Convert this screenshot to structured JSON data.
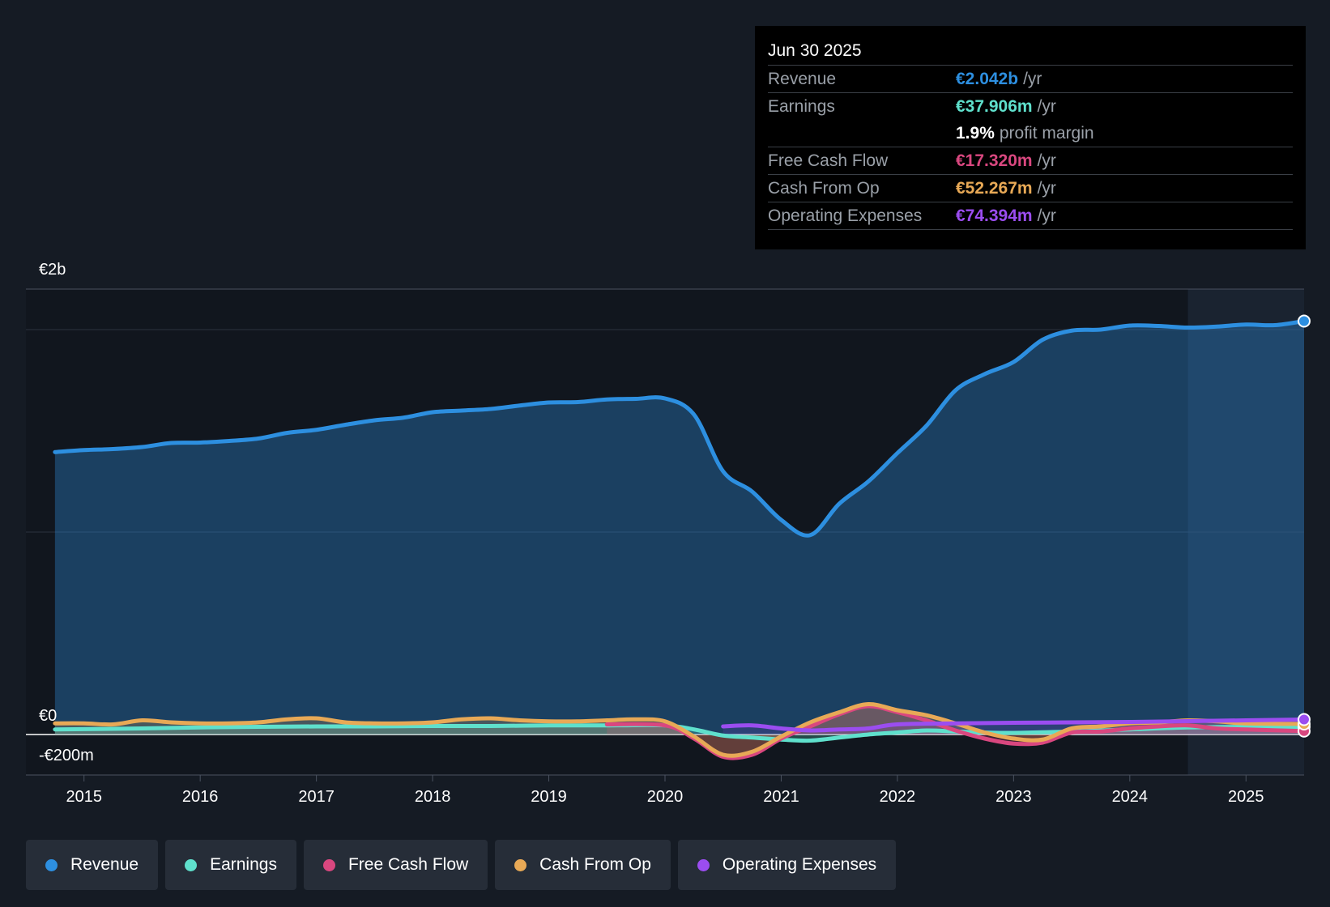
{
  "tooltip": {
    "date": "Jun 30 2025",
    "rows": [
      {
        "label": "Revenue",
        "value": "€2.042b",
        "unit": "/yr",
        "color": "#2d8fe0"
      },
      {
        "label": "Earnings",
        "value": "€37.906m",
        "unit": "/yr",
        "color": "#5fe0cc"
      },
      {
        "label": "Free Cash Flow",
        "value": "€17.320m",
        "unit": "/yr",
        "color": "#d9477f"
      },
      {
        "label": "Cash From Op",
        "value": "€52.267m",
        "unit": "/yr",
        "color": "#e8a956"
      },
      {
        "label": "Operating Expenses",
        "value": "€74.394m",
        "unit": "/yr",
        "color": "#9b4df0"
      }
    ],
    "profit_margin": {
      "value": "1.9%",
      "label": "profit margin"
    }
  },
  "legend": [
    {
      "label": "Revenue",
      "color": "#2d8fe0"
    },
    {
      "label": "Earnings",
      "color": "#5fe0cc"
    },
    {
      "label": "Free Cash Flow",
      "color": "#d9477f"
    },
    {
      "label": "Cash From Op",
      "color": "#e8a956"
    },
    {
      "label": "Operating Expenses",
      "color": "#9b4df0"
    }
  ],
  "chart_data": {
    "type": "line",
    "title": "",
    "y_tick_labels": [
      "€2b",
      "€0",
      "-€200m"
    ],
    "y_tick_values": [
      2000,
      0,
      -200
    ],
    "ylim": [
      -200,
      2200
    ],
    "xlim": [
      2014.5,
      2025.5
    ],
    "x_ticks": [
      2015,
      2016,
      2017,
      2018,
      2019,
      2020,
      2021,
      2022,
      2023,
      2024,
      2025
    ],
    "highlight_start": 2024.5,
    "series": [
      {
        "name": "Revenue",
        "color": "#2d8fe0",
        "x": [
          2014.75,
          2015,
          2015.25,
          2015.5,
          2015.75,
          2016,
          2016.25,
          2016.5,
          2016.75,
          2017,
          2017.25,
          2017.5,
          2017.75,
          2018,
          2018.25,
          2018.5,
          2018.75,
          2019,
          2019.25,
          2019.5,
          2019.75,
          2020,
          2020.25,
          2020.5,
          2020.75,
          2021,
          2021.25,
          2021.5,
          2021.75,
          2022,
          2022.25,
          2022.5,
          2022.75,
          2023,
          2023.25,
          2023.5,
          2023.75,
          2024,
          2024.25,
          2024.5,
          2024.75,
          2025,
          2025.25,
          2025.5
        ],
        "y": [
          1395,
          1405,
          1410,
          1420,
          1440,
          1442,
          1450,
          1462,
          1490,
          1505,
          1530,
          1552,
          1565,
          1592,
          1600,
          1608,
          1625,
          1640,
          1642,
          1655,
          1658,
          1660,
          1580,
          1300,
          1200,
          1060,
          985,
          1140,
          1250,
          1390,
          1525,
          1700,
          1780,
          1840,
          1950,
          1995,
          2000,
          2020,
          2018,
          2010,
          2015,
          2025,
          2022,
          2042
        ]
      },
      {
        "name": "Earnings",
        "color": "#5fe0cc",
        "x": [
          2014.75,
          2015.5,
          2016,
          2016.5,
          2017,
          2017.5,
          2018,
          2018.5,
          2019,
          2019.5,
          2020,
          2020.25,
          2020.5,
          2020.75,
          2021,
          2021.25,
          2021.5,
          2021.75,
          2022,
          2022.25,
          2022.5,
          2022.75,
          2023,
          2023.5,
          2024,
          2024.5,
          2025,
          2025.5
        ],
        "y": [
          25,
          30,
          35,
          38,
          40,
          40,
          42,
          42,
          45,
          45,
          45,
          25,
          -5,
          -15,
          -25,
          -30,
          -15,
          0,
          10,
          20,
          15,
          10,
          8,
          15,
          25,
          35,
          38,
          38
        ]
      },
      {
        "name": "Free Cash Flow",
        "color": "#d9477f",
        "x": [
          2019.5,
          2020,
          2020.25,
          2020.5,
          2020.75,
          2021,
          2021.25,
          2021.5,
          2021.75,
          2022,
          2022.25,
          2022.5,
          2022.75,
          2023,
          2023.25,
          2023.5,
          2023.75,
          2024,
          2024.25,
          2024.5,
          2024.75,
          2025,
          2025.5
        ],
        "y": [
          50,
          45,
          -20,
          -110,
          -100,
          -20,
          40,
          100,
          140,
          110,
          70,
          20,
          -20,
          -45,
          -40,
          10,
          15,
          30,
          40,
          45,
          30,
          25,
          17
        ]
      },
      {
        "name": "Cash From Op",
        "color": "#e8a956",
        "x": [
          2014.75,
          2015,
          2015.25,
          2015.5,
          2015.75,
          2016,
          2016.25,
          2016.5,
          2016.75,
          2017,
          2017.25,
          2017.5,
          2017.75,
          2018,
          2018.25,
          2018.5,
          2018.75,
          2019,
          2019.25,
          2019.5,
          2019.75,
          2020,
          2020.25,
          2020.5,
          2020.75,
          2021,
          2021.25,
          2021.5,
          2021.75,
          2022,
          2022.25,
          2022.5,
          2022.75,
          2023,
          2023.25,
          2023.5,
          2023.75,
          2024,
          2024.25,
          2024.5,
          2024.75,
          2025,
          2025.5
        ],
        "y": [
          55,
          55,
          50,
          70,
          60,
          55,
          55,
          60,
          75,
          80,
          60,
          55,
          55,
          60,
          75,
          80,
          70,
          65,
          65,
          70,
          75,
          65,
          -10,
          -100,
          -85,
          -10,
          60,
          110,
          150,
          120,
          95,
          55,
          10,
          -20,
          -25,
          30,
          40,
          55,
          60,
          70,
          65,
          55,
          52
        ]
      },
      {
        "name": "Operating Expenses",
        "color": "#9b4df0",
        "x": [
          2020.5,
          2020.75,
          2021,
          2021.25,
          2021.5,
          2021.75,
          2022,
          2022.5,
          2023,
          2023.5,
          2024,
          2024.5,
          2025,
          2025.5
        ],
        "y": [
          40,
          45,
          30,
          20,
          25,
          30,
          50,
          55,
          58,
          60,
          62,
          66,
          70,
          74
        ]
      }
    ]
  }
}
